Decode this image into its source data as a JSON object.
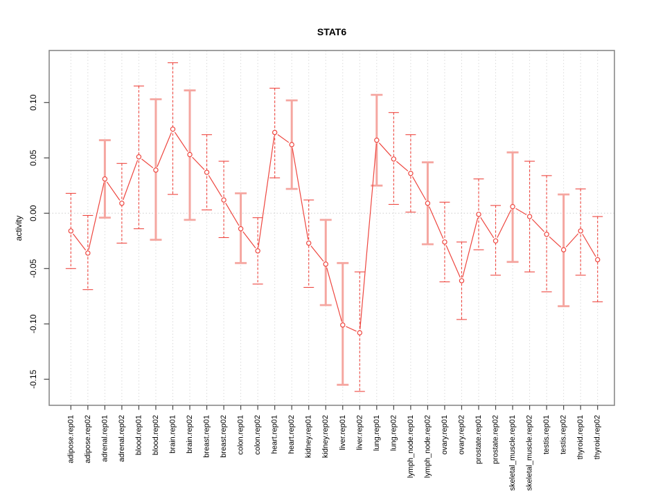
{
  "chart_data": {
    "type": "scatter",
    "title": "STAT6",
    "ylabel": "activity",
    "xlabel": "",
    "ylim": [
      -0.174,
      0.147
    ],
    "yticks": [
      0.1,
      0.05,
      0.0,
      -0.05,
      -0.1,
      -0.15
    ],
    "ytick_labels": [
      "0.10",
      "0.05",
      "0.00",
      "-0.05",
      "-0.10",
      "-0.15"
    ],
    "grid": "vertical dotted gridline per category; dotted horizontal line at zero; boxed plot area",
    "legend": "none",
    "categories": [
      "adipose.rep01",
      "adipose.rep02",
      "adrenal.rep01",
      "adrenal.rep02",
      "blood.rep01",
      "blood.rep02",
      "brain.rep01",
      "brain.rep02",
      "breast.rep01",
      "breast.rep02",
      "colon.rep01",
      "colon.rep02",
      "heart.rep01",
      "heart.rep02",
      "kidney.rep01",
      "kidney.rep02",
      "liver.rep01",
      "liver.rep02",
      "lung.rep01",
      "lung.rep02",
      "lymph_node.rep01",
      "lymph_node.rep02",
      "ovary.rep01",
      "ovary.rep02",
      "prostate.rep01",
      "prostate.rep02",
      "skeletal_muscle.rep01",
      "skeletal_muscle.rep02",
      "testis.rep01",
      "testis.rep02",
      "thyroid.rep01",
      "thyroid.rep02"
    ],
    "series": [
      {
        "name": "activity",
        "values": [
          -0.016,
          -0.036,
          0.031,
          0.009,
          0.051,
          0.039,
          0.076,
          0.053,
          0.037,
          0.012,
          -0.014,
          -0.034,
          0.073,
          0.062,
          -0.027,
          -0.046,
          -0.101,
          -0.108,
          0.066,
          0.049,
          0.036,
          0.009,
          -0.026,
          -0.061,
          -0.001,
          -0.025,
          0.006,
          -0.003,
          -0.019,
          -0.033,
          -0.016,
          -0.042
        ],
        "err_low": [
          -0.05,
          -0.069,
          -0.004,
          -0.027,
          -0.014,
          -0.024,
          0.017,
          -0.006,
          0.003,
          -0.022,
          -0.045,
          -0.064,
          0.032,
          0.022,
          -0.067,
          -0.083,
          -0.155,
          -0.161,
          0.025,
          0.008,
          0.001,
          -0.028,
          -0.062,
          -0.096,
          -0.033,
          -0.056,
          -0.044,
          -0.053,
          -0.071,
          -0.084,
          -0.056,
          -0.08
        ],
        "err_high": [
          0.018,
          -0.002,
          0.066,
          0.045,
          0.115,
          0.103,
          0.136,
          0.111,
          0.071,
          0.047,
          0.018,
          -0.004,
          0.113,
          0.102,
          0.012,
          -0.006,
          -0.045,
          -0.053,
          0.107,
          0.091,
          0.071,
          0.046,
          0.01,
          -0.026,
          0.031,
          0.007,
          0.055,
          0.047,
          0.034,
          0.017,
          0.022,
          -0.003
        ],
        "bar_styles": [
          "dashed",
          "dashed",
          "solid",
          "dashed",
          "dashed",
          "solid",
          "dashed",
          "solid",
          "dashed",
          "dashed",
          "solid",
          "dashed",
          "dashed",
          "solid",
          "dashed",
          "solid",
          "solid",
          "dashed",
          "solid",
          "dashed",
          "dashed",
          "solid",
          "dashed",
          "dashed",
          "dashed",
          "dashed",
          "solid",
          "dashed",
          "dashed",
          "solid",
          "dashed",
          "dashed"
        ]
      }
    ],
    "colors": {
      "point": "#ee453e",
      "line": "#ee453e",
      "dashed_bar": "#ee453e",
      "solid_bar": "#f5a6a0",
      "grid": "#dadada",
      "zero_line": "#cccccc",
      "border": "#888888",
      "tick": "#444444",
      "text": "#000000",
      "background": "#ffffff"
    }
  }
}
